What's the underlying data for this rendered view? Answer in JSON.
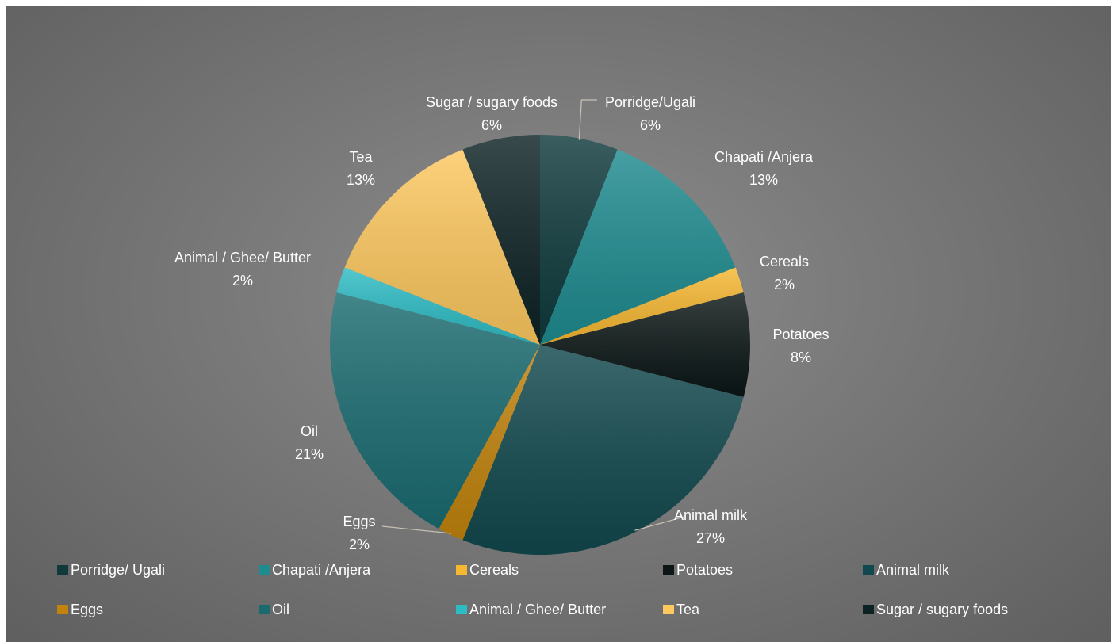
{
  "chart_data": {
    "type": "pie",
    "title": "",
    "slices": [
      {
        "label": "Porridge/Ugali",
        "legend": "Porridge/ Ugali",
        "value": 6,
        "pct_label": "6%",
        "color": "#0f3a3c"
      },
      {
        "label": "Chapati /Anjera",
        "legend": "Chapati /Anjera",
        "value": 13,
        "pct_label": "13%",
        "color": "#1e8b8f"
      },
      {
        "label": "Cereals",
        "legend": "Cereals",
        "value": 2,
        "pct_label": "2%",
        "color": "#f6b731"
      },
      {
        "label": "Potatoes",
        "legend": "Potatoes",
        "value": 8,
        "pct_label": "8%",
        "color": "#0c1616"
      },
      {
        "label": "Animal milk",
        "legend": "Animal milk",
        "value": 27,
        "pct_label": "27%",
        "color": "#11484d"
      },
      {
        "label": "Eggs",
        "legend": "Eggs",
        "value": 2,
        "pct_label": "2%",
        "color": "#c1830c"
      },
      {
        "label": "Oil",
        "legend": "Oil",
        "value": 21,
        "pct_label": "21%",
        "color": "#1a6b70"
      },
      {
        "label": "Animal / Ghee/ Butter",
        "legend": "Animal / Ghee/ Butter",
        "value": 2,
        "pct_label": "2%",
        "color": "#2ebcc4"
      },
      {
        "label": "Tea",
        "legend": "Tea",
        "value": 13,
        "pct_label": "13%",
        "color": "#fdc85f"
      },
      {
        "label": "Sugar / sugary foods",
        "legend": "Sugar / sugary foods",
        "value": 6,
        "pct_label": "6%",
        "color": "#0d2224"
      }
    ],
    "legend_position": "bottom"
  }
}
